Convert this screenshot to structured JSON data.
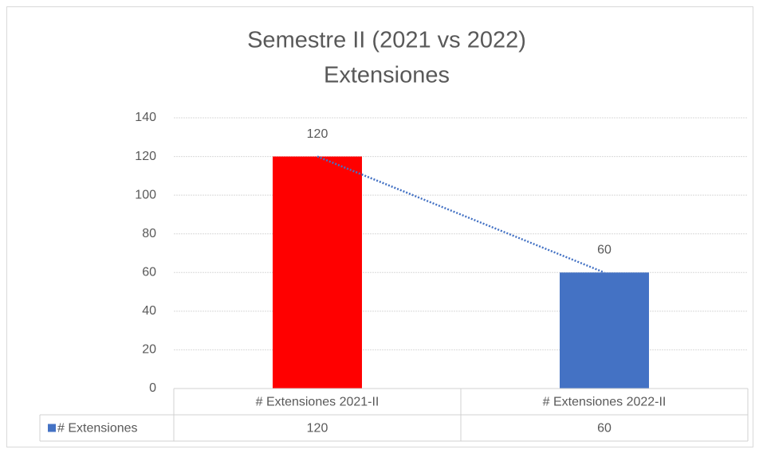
{
  "chart_data": {
    "type": "bar",
    "title": [
      "Semestre II (2021 vs 2022)",
      "Extensiones"
    ],
    "categories": [
      "# Extensiones 2021-II",
      "# Extensiones 2022-II"
    ],
    "series": [
      {
        "name": "# Extensiones",
        "color": "#4472c4",
        "point_colors": [
          "#ff0000",
          "#4472c4"
        ],
        "values": [
          120,
          60
        ]
      }
    ],
    "ylim": [
      0,
      140
    ],
    "yticks": [
      0,
      20,
      40,
      60,
      80,
      100,
      120,
      140
    ],
    "grid": true,
    "data_labels": true,
    "data_table": true,
    "trendline": true
  }
}
